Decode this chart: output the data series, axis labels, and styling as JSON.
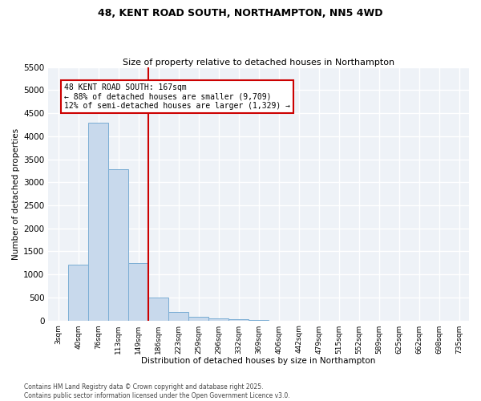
{
  "title": "48, KENT ROAD SOUTH, NORTHAMPTON, NN5 4WD",
  "subtitle": "Size of property relative to detached houses in Northampton",
  "xlabel": "Distribution of detached houses by size in Northampton",
  "ylabel": "Number of detached properties",
  "bar_color": "#c8d9ec",
  "bar_edge_color": "#7aadd4",
  "categories": [
    "3sqm",
    "40sqm",
    "76sqm",
    "113sqm",
    "149sqm",
    "186sqm",
    "223sqm",
    "259sqm",
    "296sqm",
    "332sqm",
    "369sqm",
    "406sqm",
    "442sqm",
    "479sqm",
    "515sqm",
    "552sqm",
    "589sqm",
    "625sqm",
    "662sqm",
    "698sqm",
    "735sqm"
  ],
  "values": [
    0,
    1220,
    4300,
    3280,
    1240,
    500,
    185,
    80,
    50,
    30,
    10,
    0,
    0,
    0,
    0,
    0,
    0,
    0,
    0,
    0,
    0
  ],
  "ylim": [
    0,
    5500
  ],
  "yticks": [
    0,
    500,
    1000,
    1500,
    2000,
    2500,
    3000,
    3500,
    4000,
    4500,
    5000,
    5500
  ],
  "vline_x": 4.5,
  "vline_color": "#cc0000",
  "annotation_text": "48 KENT ROAD SOUTH: 167sqm\n← 88% of detached houses are smaller (9,709)\n12% of semi-detached houses are larger (1,329) →",
  "annotation_box_color": "#cc0000",
  "footer_line1": "Contains HM Land Registry data © Crown copyright and database right 2025.",
  "footer_line2": "Contains public sector information licensed under the Open Government Licence v3.0.",
  "background_color": "#eef2f7",
  "grid_color": "#ffffff",
  "fig_bg_color": "#ffffff"
}
